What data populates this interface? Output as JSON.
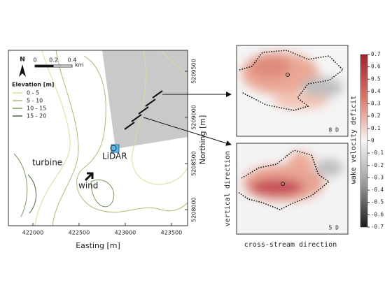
{
  "map": {
    "north": "N",
    "scalebar": {
      "ticks": [
        0,
        0.2,
        0.4
      ],
      "unit": "km"
    },
    "legend": {
      "title": "Elevation [m]",
      "items": [
        {
          "label": "0 - 5",
          "color": "#d3df9c"
        },
        {
          "label": "5 - 10",
          "color": "#a7bd78"
        },
        {
          "label": "10 - 15",
          "color": "#7a975d"
        },
        {
          "label": "15 - 20",
          "color": "#4e6838"
        }
      ]
    },
    "labels": {
      "turbine": "turbine",
      "lidar": "LiDAR",
      "wind": "wind"
    },
    "xlabel": "Easting [m]",
    "ylabel": "Northing [m]",
    "xlim": [
      421735,
      423675
    ],
    "xticks": [
      422000,
      422500,
      423000,
      423500
    ],
    "ylim": [
      5207826,
      5209727
    ],
    "yticks": [
      5208000,
      5208500,
      5209000,
      5209500
    ]
  },
  "panels": [
    {
      "label": "8 D"
    },
    {
      "label": "5 D"
    }
  ],
  "ylabel": "vertical direction",
  "xlabel": "cross-stream direction",
  "colorbar": {
    "label": "wake velocity deficit",
    "lim": [
      -0.7,
      0.7
    ],
    "ticks": [
      0.7,
      0.6,
      0.5,
      0.4,
      0.3,
      0.2,
      0.1,
      0,
      -0.1,
      -0.2,
      -0.3,
      -0.4,
      -0.5,
      -0.6,
      -0.7
    ]
  }
}
